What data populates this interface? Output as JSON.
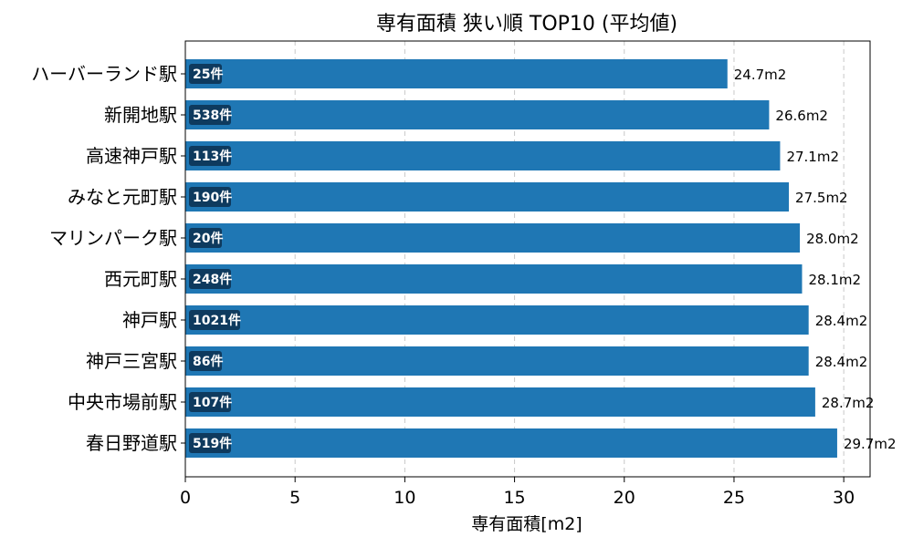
{
  "chart_data": {
    "type": "bar",
    "orientation": "horizontal",
    "title": "専有面積 狭い順 TOP10 (平均値)",
    "xlabel": "専有面積[m2]",
    "ylabel": "",
    "xlim": [
      0,
      31.2
    ],
    "xticks": [
      0,
      5,
      10,
      15,
      20,
      25,
      30
    ],
    "grid": "x-dashed",
    "bar_color": "#1f77b4",
    "badge_color": "#0e3a5e",
    "value_suffix": "m2",
    "categories": [
      "ハーバーランド駅",
      "新開地駅",
      "高速神戸駅",
      "みなと元町駅",
      "マリンパーク駅",
      "西元町駅",
      "神戸駅",
      "神戸三宮駅",
      "中央市場前駅",
      "春日野道駅"
    ],
    "values": [
      24.7,
      26.6,
      27.1,
      27.5,
      28.0,
      28.1,
      28.4,
      28.4,
      28.7,
      29.7
    ],
    "count_labels": [
      "25件",
      "538件",
      "113件",
      "190件",
      "20件",
      "248件",
      "1021件",
      "86件",
      "107件",
      "519件"
    ]
  }
}
